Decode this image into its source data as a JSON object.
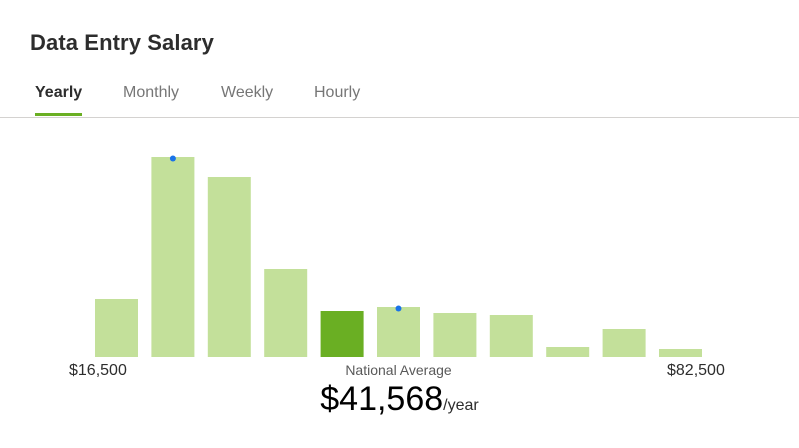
{
  "header": {
    "title": "Data Entry Salary"
  },
  "tabs": [
    {
      "label": "Yearly",
      "active": true
    },
    {
      "label": "Monthly",
      "active": false
    },
    {
      "label": "Weekly",
      "active": false
    },
    {
      "label": "Hourly",
      "active": false
    }
  ],
  "colors": {
    "accent": "#6aaf23",
    "bar": "#c3e09a",
    "bar_highlight": "#6aaf23",
    "marker": "#1a73e8",
    "divider": "#d4d2d0"
  },
  "chart_data": {
    "type": "bar",
    "title": "",
    "xlabel": "",
    "ylabel": "",
    "x_min_label": "$16,500",
    "x_max_label": "$82,500",
    "categories": [
      "1",
      "2",
      "3",
      "4",
      "5",
      "6",
      "7",
      "8",
      "9",
      "10",
      "11"
    ],
    "values": [
      29,
      100,
      90,
      44,
      23,
      25,
      22,
      21,
      5,
      14,
      4
    ],
    "ylim": [
      0,
      100
    ],
    "highlight_index": 4,
    "markers": [
      1,
      5
    ],
    "grid": false
  },
  "national": {
    "label": "National Average",
    "value": "$41,568",
    "unit": "/year"
  }
}
